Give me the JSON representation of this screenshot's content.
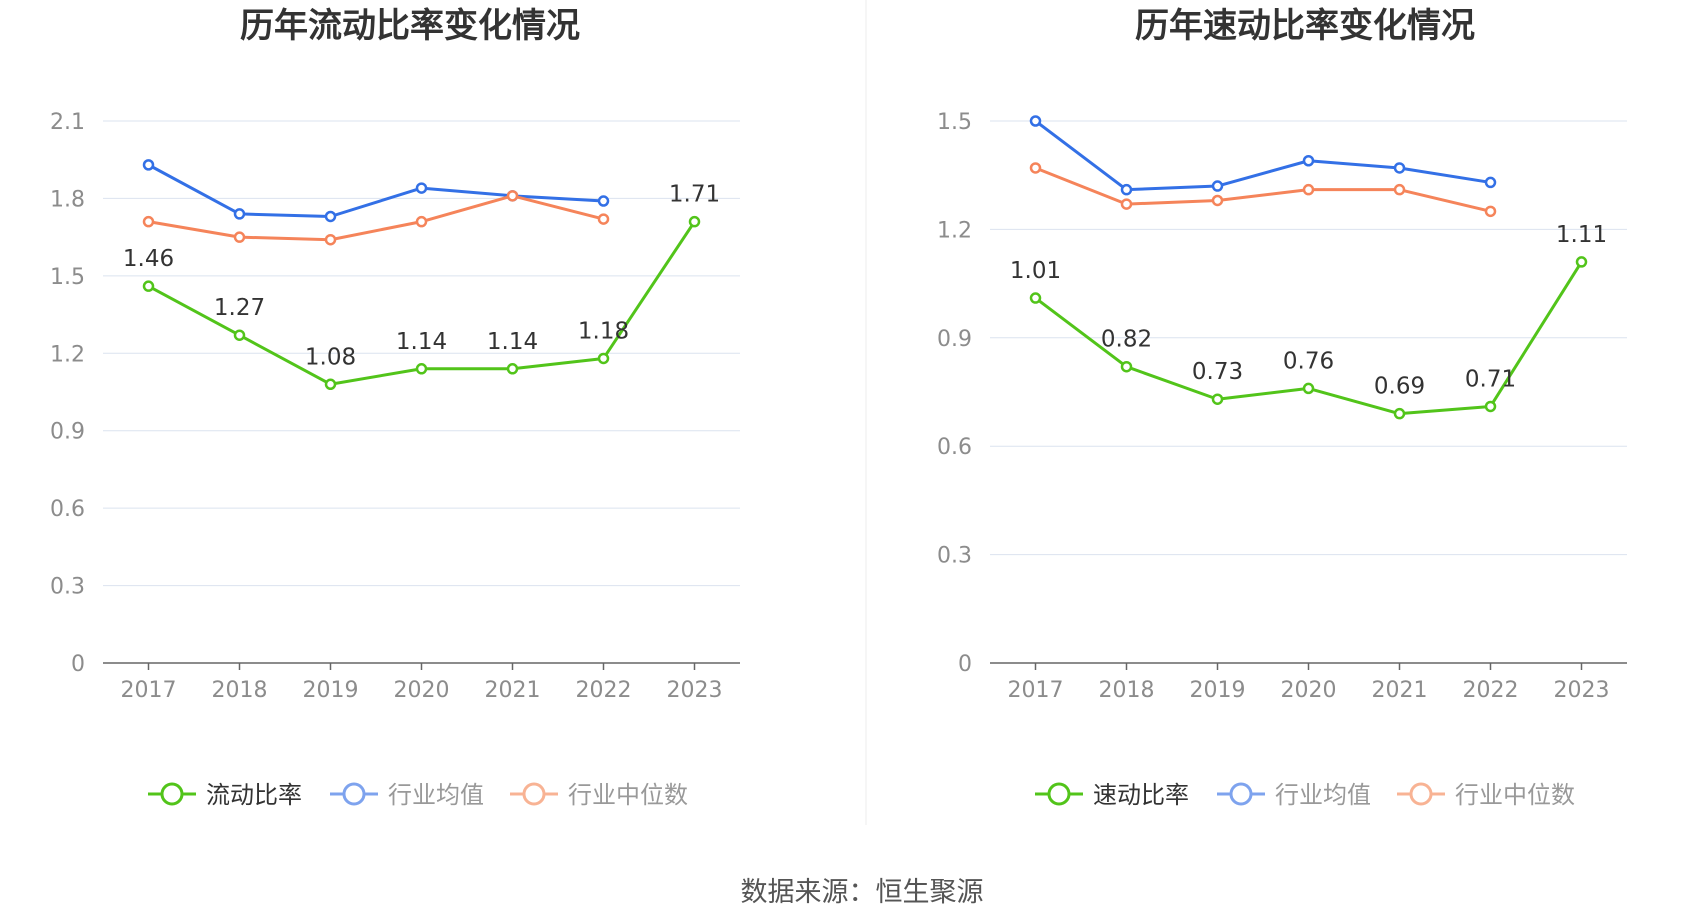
{
  "source": {
    "label": "数据来源：恒生聚源"
  },
  "colors": {
    "main": "#52c41a",
    "avg": "#3370e6",
    "median": "#f5845a",
    "grid": "#dbe3ef",
    "axis": "#666666",
    "legend_avg": "#7ea3ee",
    "legend_median": "#f8b394"
  },
  "chart_data": [
    {
      "type": "line",
      "title": "历年流动比率变化情况",
      "categories": [
        "2017",
        "2018",
        "2019",
        "2020",
        "2021",
        "2022",
        "2023"
      ],
      "ylim": [
        0,
        2.1
      ],
      "yticks": [
        "0",
        "0.3",
        "0.6",
        "0.9",
        "1.2",
        "1.5",
        "1.8",
        "2.1"
      ],
      "series": [
        {
          "name": "流动比率",
          "key": "main",
          "values": [
            1.46,
            1.27,
            1.08,
            1.14,
            1.14,
            1.18,
            1.71
          ],
          "labels": [
            "1.46",
            "1.27",
            "1.08",
            "1.14",
            "1.14",
            "1.18",
            "1.71"
          ]
        },
        {
          "name": "行业均值",
          "key": "avg",
          "values": [
            1.93,
            1.74,
            1.73,
            1.84,
            1.81,
            1.79,
            null
          ]
        },
        {
          "name": "行业中位数",
          "key": "median",
          "values": [
            1.71,
            1.65,
            1.64,
            1.71,
            1.81,
            1.72,
            null
          ]
        }
      ]
    },
    {
      "type": "line",
      "title": "历年速动比率变化情况",
      "categories": [
        "2017",
        "2018",
        "2019",
        "2020",
        "2021",
        "2022",
        "2023"
      ],
      "ylim": [
        0,
        1.5
      ],
      "yticks": [
        "0",
        "0.3",
        "0.6",
        "0.9",
        "1.2",
        "1.5"
      ],
      "series": [
        {
          "name": "速动比率",
          "key": "main",
          "values": [
            1.01,
            0.82,
            0.73,
            0.76,
            0.69,
            0.71,
            1.11
          ],
          "labels": [
            "1.01",
            "0.82",
            "0.73",
            "0.76",
            "0.69",
            "0.71",
            "1.11"
          ]
        },
        {
          "name": "行业均值",
          "key": "avg",
          "values": [
            1.5,
            1.31,
            1.32,
            1.39,
            1.37,
            1.33,
            null
          ]
        },
        {
          "name": "行业中位数",
          "key": "median",
          "values": [
            1.37,
            1.27,
            1.28,
            1.31,
            1.31,
            1.25,
            null
          ]
        }
      ]
    }
  ]
}
